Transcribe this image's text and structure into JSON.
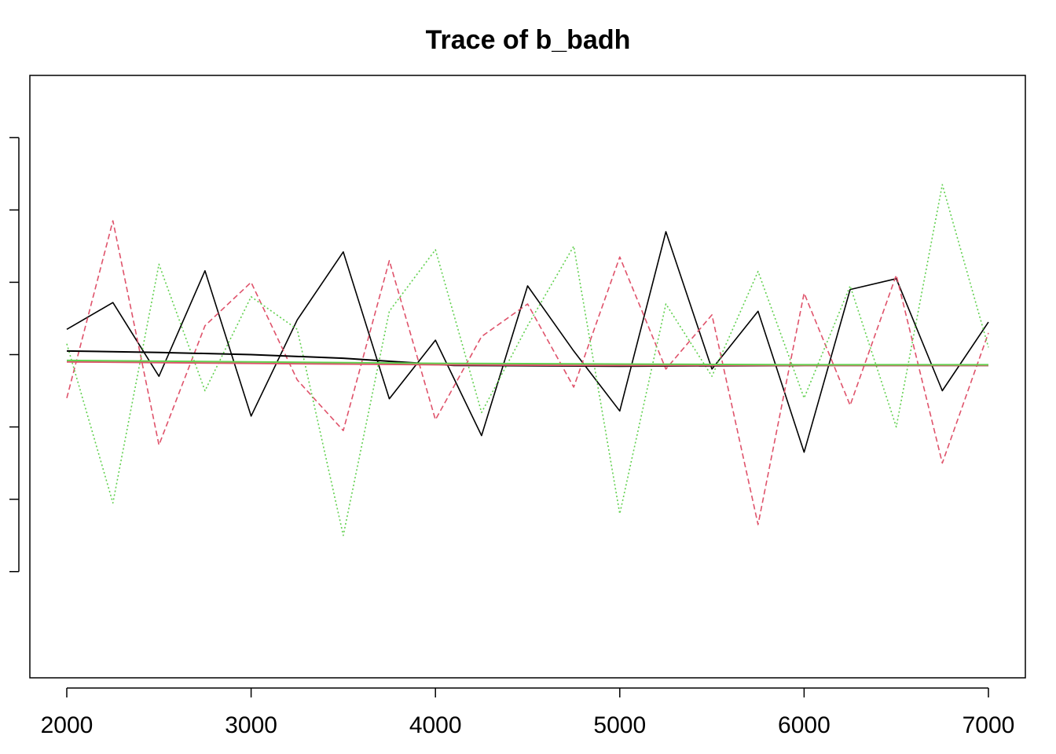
{
  "chart_data": {
    "type": "line",
    "title": "Trace of b_badh",
    "xlabel": "",
    "ylabel": "",
    "xlim": [
      2000,
      7000
    ],
    "ylim": [
      -3.6,
      3.6
    ],
    "x_ticks": [
      2000,
      3000,
      4000,
      5000,
      6000,
      7000
    ],
    "y_ticks_labeled": false,
    "grid": false,
    "series": [
      {
        "color": "#000000",
        "linestyle": "solid",
        "x": [
          2000,
          2250,
          2500,
          2750,
          3000,
          3250,
          3500,
          3750,
          4000,
          4250,
          4500,
          4750,
          5000,
          5250,
          5500,
          5750,
          6000,
          6250,
          6500,
          6750,
          7000
        ],
        "values": [
          0.35,
          0.72,
          -0.3,
          1.16,
          -0.85,
          0.48,
          1.42,
          -0.61,
          0.2,
          -1.12,
          0.95,
          0.05,
          -0.78,
          1.7,
          -0.2,
          0.6,
          -1.35,
          0.9,
          1.05,
          -0.5,
          0.45
        ]
      },
      {
        "color": "#DF536B",
        "linestyle": "dashed",
        "x": [
          2000,
          2250,
          2500,
          2750,
          3000,
          3250,
          3500,
          3750,
          4000,
          4250,
          4500,
          4750,
          5000,
          5250,
          5500,
          5750,
          6000,
          6250,
          6500,
          6750,
          7000
        ],
        "values": [
          -0.6,
          1.85,
          -1.25,
          0.4,
          1.0,
          -0.35,
          -1.05,
          1.3,
          -0.9,
          0.25,
          0.7,
          -0.45,
          1.35,
          -0.2,
          0.55,
          -2.35,
          0.85,
          -0.7,
          1.1,
          -1.5,
          0.3
        ]
      },
      {
        "color": "#61D04F",
        "linestyle": "dotted",
        "x": [
          2000,
          2250,
          2500,
          2750,
          3000,
          3250,
          3500,
          3750,
          4000,
          4250,
          4500,
          4750,
          5000,
          5250,
          5500,
          5750,
          6000,
          6250,
          6500,
          6750,
          7000
        ],
        "values": [
          0.15,
          -2.05,
          1.25,
          -0.5,
          0.8,
          0.35,
          -2.5,
          0.6,
          1.45,
          -0.8,
          0.4,
          1.5,
          -2.2,
          0.7,
          -0.3,
          1.15,
          -0.6,
          0.95,
          -1.0,
          2.35,
          0.1
        ]
      }
    ],
    "running_means": [
      {
        "color": "#000000",
        "x": [
          2000,
          2500,
          3000,
          3500,
          3800,
          4100,
          5000,
          6000,
          7000
        ],
        "values": [
          0.05,
          0.03,
          0.0,
          -0.05,
          -0.1,
          -0.15,
          -0.16,
          -0.15,
          -0.15
        ]
      },
      {
        "color": "#DF536B",
        "x": [
          2000,
          3000,
          4000,
          5000,
          6000,
          7000
        ],
        "values": [
          -0.1,
          -0.12,
          -0.14,
          -0.15,
          -0.15,
          -0.15
        ]
      },
      {
        "color": "#61D04F",
        "x": [
          2000,
          3000,
          4000,
          5000,
          6000,
          7000
        ],
        "values": [
          -0.08,
          -0.1,
          -0.12,
          -0.13,
          -0.14,
          -0.14
        ]
      }
    ]
  }
}
